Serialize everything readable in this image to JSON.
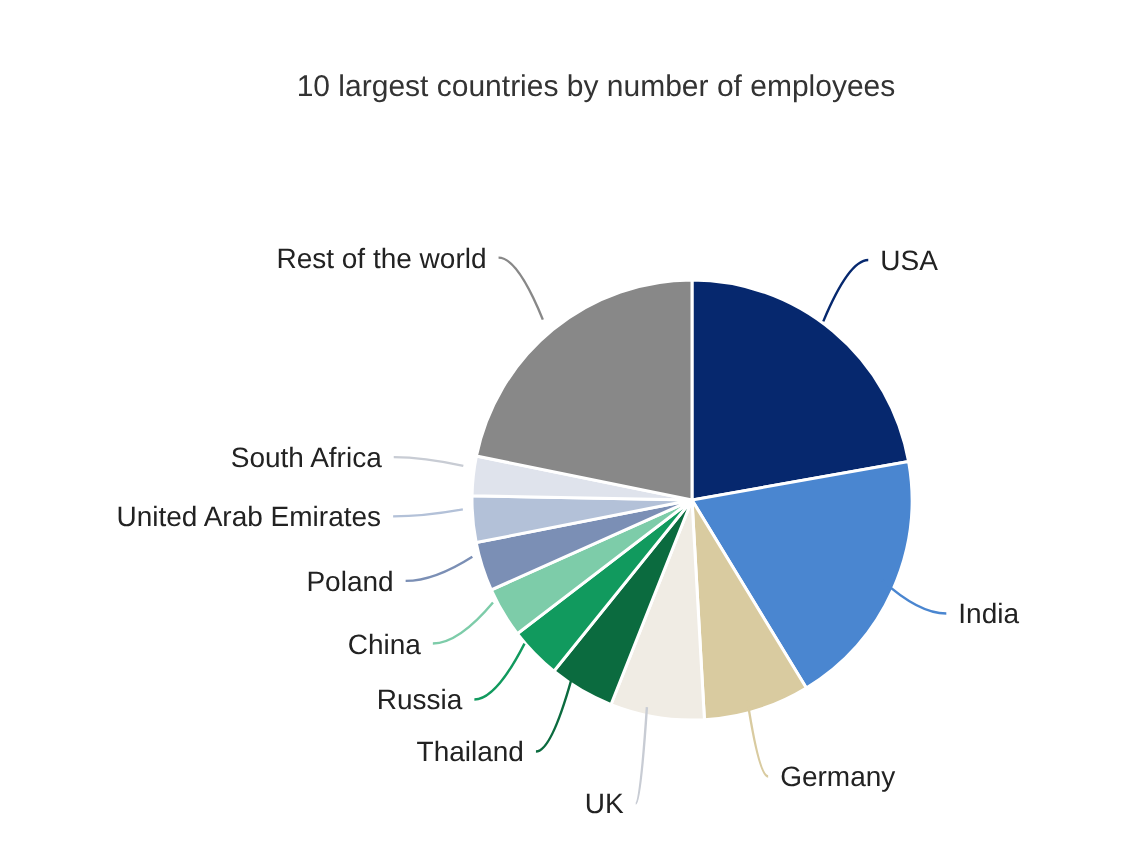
{
  "chart_data": {
    "type": "pie",
    "title": "10 largest countries by number of employees",
    "categories": [
      "USA",
      "India",
      "Germany",
      "UK",
      "Thailand",
      "Russia",
      "China",
      "Poland",
      "United Arab Emirates",
      "South Africa",
      "Rest of the world"
    ],
    "values": [
      22.2,
      19.1,
      7.8,
      6.9,
      4.8,
      3.8,
      3.7,
      3.6,
      3.4,
      2.9,
      21.8
    ],
    "colors": [
      "#06286e",
      "#4a86d0",
      "#d9cba0",
      "#f0ece4",
      "#0b6b3f",
      "#119a5e",
      "#7dcca9",
      "#7b8fb5",
      "#b3c1d8",
      "#dfe3ec",
      "#888888"
    ],
    "legend": false
  }
}
